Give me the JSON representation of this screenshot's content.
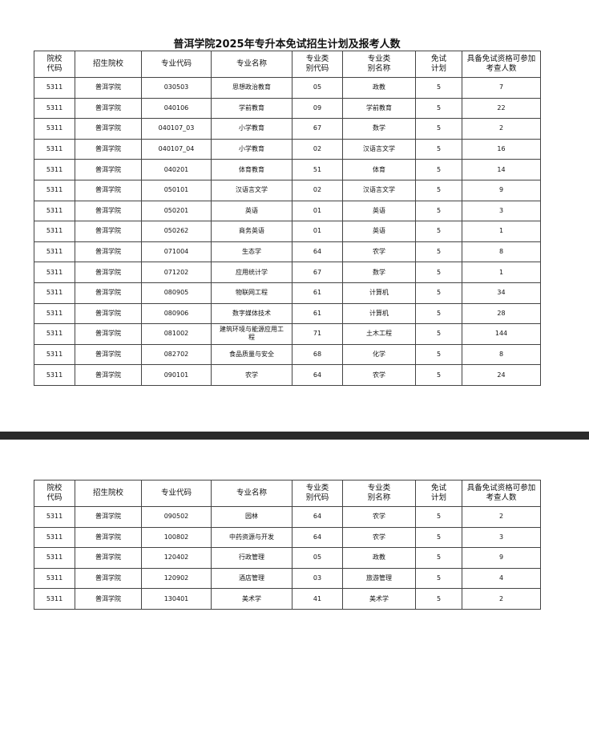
{
  "title": "普洱学院2025年专升本免试招生计划及报考人数",
  "headers": [
    "院校\n代码",
    "招生院校",
    "专业代码",
    "专业名称",
    "专业类\n别代码",
    "专业类\n别名称",
    "免试\n计划",
    "具备免试资格可参加\n考查人数"
  ],
  "page1_rows": [
    [
      "5311",
      "普洱学院",
      "030503",
      "思想政治教育",
      "05",
      "政教",
      "5",
      "7"
    ],
    [
      "5311",
      "普洱学院",
      "040106",
      "学前教育",
      "09",
      "学前教育",
      "5",
      "22"
    ],
    [
      "5311",
      "普洱学院",
      "040107_03",
      "小学教育",
      "67",
      "数学",
      "5",
      "2"
    ],
    [
      "5311",
      "普洱学院",
      "040107_04",
      "小学教育",
      "02",
      "汉语言文学",
      "5",
      "16"
    ],
    [
      "5311",
      "普洱学院",
      "040201",
      "体育教育",
      "51",
      "体育",
      "5",
      "14"
    ],
    [
      "5311",
      "普洱学院",
      "050101",
      "汉语言文学",
      "02",
      "汉语言文学",
      "5",
      "9"
    ],
    [
      "5311",
      "普洱学院",
      "050201",
      "英语",
      "01",
      "英语",
      "5",
      "3"
    ],
    [
      "5311",
      "普洱学院",
      "050262",
      "商务英语",
      "01",
      "英语",
      "5",
      "1"
    ],
    [
      "5311",
      "普洱学院",
      "071004",
      "生态学",
      "64",
      "农学",
      "5",
      "8"
    ],
    [
      "5311",
      "普洱学院",
      "071202",
      "应用统计学",
      "67",
      "数学",
      "5",
      "1"
    ],
    [
      "5311",
      "普洱学院",
      "080905",
      "物联网工程",
      "61",
      "计算机",
      "5",
      "34"
    ],
    [
      "5311",
      "普洱学院",
      "080906",
      "数字媒体技术",
      "61",
      "计算机",
      "5",
      "28"
    ],
    [
      "5311",
      "普洱学院",
      "081002",
      "建筑环境与能源应用工程",
      "71",
      "土木工程",
      "5",
      "144"
    ],
    [
      "5311",
      "普洱学院",
      "082702",
      "食品质量与安全",
      "68",
      "化学",
      "5",
      "8"
    ],
    [
      "5311",
      "普洱学院",
      "090101",
      "农学",
      "64",
      "农学",
      "5",
      "24"
    ]
  ],
  "page2_rows": [
    [
      "5311",
      "普洱学院",
      "090502",
      "园林",
      "64",
      "农学",
      "5",
      "2"
    ],
    [
      "5311",
      "普洱学院",
      "100802",
      "中药资源与开发",
      "64",
      "农学",
      "5",
      "3"
    ],
    [
      "5311",
      "普洱学院",
      "120402",
      "行政管理",
      "05",
      "政教",
      "5",
      "9"
    ],
    [
      "5311",
      "普洱学院",
      "120902",
      "酒店管理",
      "03",
      "旅游管理",
      "5",
      "4"
    ],
    [
      "5311",
      "普洱学院",
      "130401",
      "美术学",
      "41",
      "美术学",
      "5",
      "2"
    ]
  ]
}
